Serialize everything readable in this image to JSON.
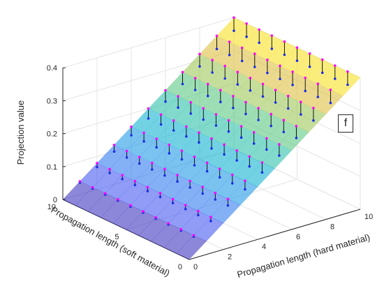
{
  "chart_data": {
    "type": "surface3d",
    "panel_label": "f",
    "xlabel": "Propagation length (hard material)",
    "ylabel": "Propagation length (soft material)",
    "zlabel": "Projection value",
    "xlim": [
      0,
      10
    ],
    "ylim": [
      0,
      10
    ],
    "zlim": [
      0,
      0.4
    ],
    "x_ticks": [
      "0",
      "2",
      "4",
      "6",
      "8",
      "10"
    ],
    "y_ticks": [
      "0",
      "5",
      "10"
    ],
    "z_ticks": [
      "0",
      "0.1",
      "0.2",
      "0.3",
      "0.4"
    ],
    "grid": true,
    "colormap": "parula",
    "surface_alpha": 0.6,
    "model": "z = 0.04 * x (independent of y)",
    "grid_x": [
      0,
      1,
      2,
      3,
      4,
      5,
      6,
      7,
      8,
      9,
      10
    ],
    "grid_y": [
      0,
      1,
      2,
      3,
      4,
      5,
      6,
      7,
      8,
      9,
      10
    ],
    "surface_z_by_x": [
      0,
      0.04,
      0.08,
      0.12,
      0.16,
      0.2,
      0.24,
      0.28,
      0.32,
      0.36,
      0.4
    ],
    "measured_points": {
      "x": [
        1,
        2,
        3,
        4,
        5,
        6,
        7,
        8,
        9,
        10
      ],
      "y": [
        1,
        2,
        3,
        4,
        5,
        6,
        7,
        8,
        9,
        10
      ],
      "note_z": "measured z ~= 0.04*x minus a small offset; stems join measured (blue) to fitted (magenta)",
      "z_offset": [
        0.004,
        0.012,
        0.02,
        0.026,
        0.03,
        0.034,
        0.036,
        0.038,
        0.04,
        0.04
      ],
      "color": "#1b2fe6"
    },
    "fitted_points_color": "#ff00ff",
    "stem_color": "#000000"
  }
}
